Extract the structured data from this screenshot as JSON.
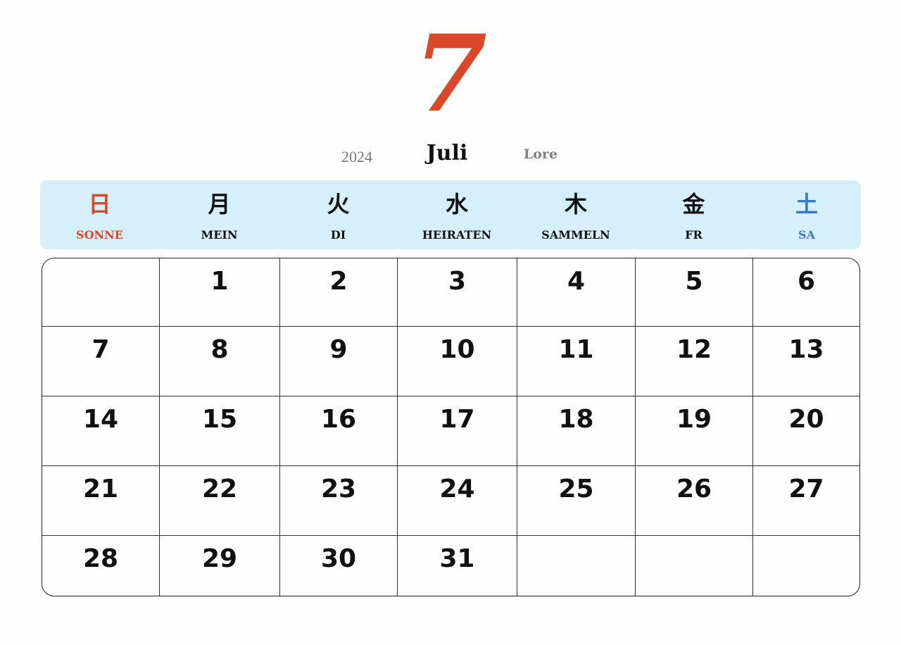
{
  "header": {
    "month_number": "7",
    "year": "2024",
    "month_name": "Juli",
    "tag": "Lore"
  },
  "colors": {
    "accent_red": "#d9482b",
    "saturday_blue": "#3a78c8",
    "header_bg": "#d6f0fb"
  },
  "weekdays": [
    {
      "kanji": "日",
      "label": "SONNE"
    },
    {
      "kanji": "月",
      "label": "MEIN"
    },
    {
      "kanji": "火",
      "label": "DI"
    },
    {
      "kanji": "水",
      "label": "HEIRATEN"
    },
    {
      "kanji": "木",
      "label": "SAMMELN"
    },
    {
      "kanji": "金",
      "label": "FR"
    },
    {
      "kanji": "土",
      "label": "SA"
    }
  ],
  "weeks": [
    [
      "",
      "1",
      "2",
      "3",
      "4",
      "5",
      "6"
    ],
    [
      "7",
      "8",
      "9",
      "10",
      "11",
      "12",
      "13"
    ],
    [
      "14",
      "15",
      "16",
      "17",
      "18",
      "19",
      "20"
    ],
    [
      "21",
      "22",
      "23",
      "24",
      "25",
      "26",
      "27"
    ],
    [
      "28",
      "29",
      "30",
      "31",
      "",
      "",
      ""
    ]
  ]
}
